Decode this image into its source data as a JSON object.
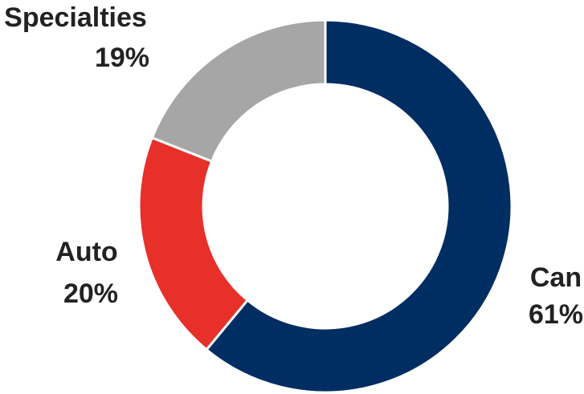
{
  "chart_data": {
    "type": "pie",
    "variant": "donut",
    "title": "",
    "slices": [
      {
        "name": "Can",
        "value": 61,
        "label": "61%",
        "color": "#002d62"
      },
      {
        "name": "Auto",
        "value": 20,
        "label": "20%",
        "color": "#e8302a"
      },
      {
        "name": "Specialties",
        "value": 19,
        "label": "19%",
        "color": "#a6a6a6"
      }
    ],
    "legend": "none",
    "start": "top",
    "direction": "clockwise"
  }
}
